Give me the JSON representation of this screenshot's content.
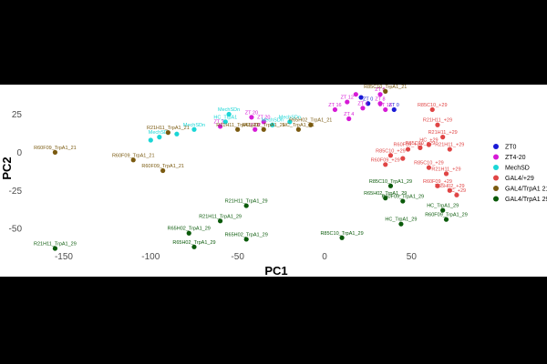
{
  "chart_data": {
    "type": "scatter",
    "title": "",
    "xlabel": "PC1",
    "ylabel": "PC2",
    "xlim": [
      -172,
      86
    ],
    "ylim": [
      -63,
      42
    ],
    "x_ticks": [
      -150,
      -100,
      -50,
      0,
      50
    ],
    "y_ticks": [
      25,
      0,
      -25,
      -50
    ],
    "grid": false,
    "legend_position": "right",
    "series": [
      {
        "name": "ZT0",
        "color": "#1a1ad6",
        "points": [
          {
            "x": 25,
            "y": 32,
            "label": "ZT 0"
          },
          {
            "x": 40,
            "y": 28,
            "label": "ZT 0"
          },
          {
            "x": 21,
            "y": 36,
            "label": ""
          }
        ]
      },
      {
        "name": "ZT4-20",
        "color": "#d61ad6",
        "points": [
          {
            "x": 6,
            "y": 28,
            "label": "ZT 16"
          },
          {
            "x": 13,
            "y": 33,
            "label": "ZT 12"
          },
          {
            "x": 18,
            "y": 38,
            "label": ""
          },
          {
            "x": 22,
            "y": 29,
            "label": "ZT 4"
          },
          {
            "x": 32,
            "y": 32,
            "label": "ZT 8"
          },
          {
            "x": 35,
            "y": 28,
            "label": "ZT 16"
          },
          {
            "x": 32,
            "y": 38,
            "label": "ZT 8"
          },
          {
            "x": 14,
            "y": 22,
            "label": "ZT 4"
          },
          {
            "x": -35,
            "y": 20,
            "label": "ZT 20"
          },
          {
            "x": -40,
            "y": 15,
            "label": "ZT 8"
          },
          {
            "x": -42,
            "y": 23,
            "label": "ZT 20"
          },
          {
            "x": -60,
            "y": 17,
            "label": "ZT 20"
          }
        ]
      },
      {
        "name": "MechSD",
        "color": "#1ad6d6",
        "points": [
          {
            "x": -55,
            "y": 25,
            "label": "MechSDn"
          },
          {
            "x": -20,
            "y": 20,
            "label": "MechSDn"
          },
          {
            "x": -57,
            "y": 20,
            "label": "HC_TrpA1"
          },
          {
            "x": -30,
            "y": 18,
            "label": "MechSDn"
          },
          {
            "x": -75,
            "y": 15,
            "label": "MechSDn"
          },
          {
            "x": -85,
            "y": 12,
            "label": ""
          },
          {
            "x": -95,
            "y": 10,
            "label": "MechSDn"
          },
          {
            "x": -100,
            "y": 8,
            "label": ""
          }
        ]
      },
      {
        "name": "GAL4/+29",
        "color": "#e04545",
        "points": [
          {
            "x": 62,
            "y": 28,
            "label": "R85C10_+29"
          },
          {
            "x": 65,
            "y": 18,
            "label": "R21H11_+29"
          },
          {
            "x": 68,
            "y": 10,
            "label": "R21H11_+29"
          },
          {
            "x": 60,
            "y": 5,
            "label": "HC_+29"
          },
          {
            "x": 55,
            "y": 3,
            "label": "R85C10_+29"
          },
          {
            "x": 72,
            "y": 2,
            "label": "R21H11_+29"
          },
          {
            "x": 48,
            "y": 2,
            "label": "R60F09_+29"
          },
          {
            "x": 38,
            "y": -2,
            "label": "R85C10_+29"
          },
          {
            "x": 45,
            "y": -4,
            "label": ""
          },
          {
            "x": 60,
            "y": -10,
            "label": "R85C10_+29"
          },
          {
            "x": 70,
            "y": -14,
            "label": "R21H11_+29"
          },
          {
            "x": 35,
            "y": -8,
            "label": "R60F09_+29"
          },
          {
            "x": 65,
            "y": -22,
            "label": "R60F09_+29"
          },
          {
            "x": 72,
            "y": -25,
            "label": "R65H02_+29"
          },
          {
            "x": 76,
            "y": -28,
            "label": "HC_+29"
          }
        ]
      },
      {
        "name": "GAL4/TrpA1 21",
        "color": "#7a5a10",
        "points": [
          {
            "x": 35,
            "y": 40,
            "label": "R85C10_TrpA1_21"
          },
          {
            "x": -8,
            "y": 18,
            "label": "R65H02_TrpA1_21"
          },
          {
            "x": -15,
            "y": 15,
            "label": "HC_TrpA1_21"
          },
          {
            "x": -35,
            "y": 15,
            "label": "R65H02_TrpA1_21"
          },
          {
            "x": -50,
            "y": 15,
            "label": "R21H11_TrpA1_21"
          },
          {
            "x": -90,
            "y": 13,
            "label": "R21H11_TrpA1_21"
          },
          {
            "x": -155,
            "y": 0,
            "label": "R60F09_TrpA1_21"
          },
          {
            "x": -110,
            "y": -5,
            "label": "R60F09_TrpA1_21"
          },
          {
            "x": -93,
            "y": -12,
            "label": "R60F09_TrpA1_21"
          }
        ]
      },
      {
        "name": "GAL4/TrpA1 29",
        "color": "#0a5a0a",
        "points": [
          {
            "x": 38,
            "y": -22,
            "label": "R85C10_TrpA1_29"
          },
          {
            "x": 45,
            "y": -32,
            "label": "R60F09_TrpA1_29"
          },
          {
            "x": 68,
            "y": -38,
            "label": "HC_TrpA1_29"
          },
          {
            "x": 70,
            "y": -44,
            "label": "R60F09_TrpA1_29"
          },
          {
            "x": 44,
            "y": -47,
            "label": "HC_TrpA1_29"
          },
          {
            "x": 35,
            "y": -30,
            "label": "R65H02_TrpA1_29"
          },
          {
            "x": -45,
            "y": -35,
            "label": "R21H11_TrpA1_29"
          },
          {
            "x": -60,
            "y": -45,
            "label": "R21H11_TrpA1_29"
          },
          {
            "x": -78,
            "y": -53,
            "label": "R65H02_TrpA1_29"
          },
          {
            "x": -45,
            "y": -57,
            "label": "R65H02_TrpA1_29"
          },
          {
            "x": -75,
            "y": -62,
            "label": "R65H02_TrpA1_29"
          },
          {
            "x": 10,
            "y": -56,
            "label": "R85C10_TrpA1_29"
          },
          {
            "x": -155,
            "y": -63,
            "label": "R21H11_TrpA1_29"
          }
        ]
      }
    ]
  }
}
